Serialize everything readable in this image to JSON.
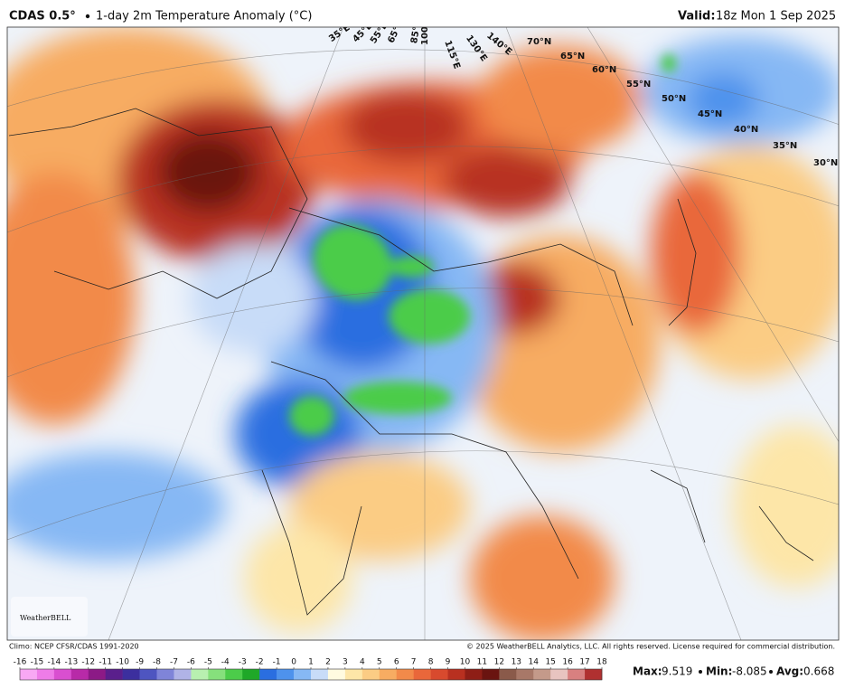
{
  "header": {
    "model": "CDAS 0.5°",
    "product": "1-day 2m Temperature Anomaly (°C)",
    "valid_label": "Valid:",
    "valid_time": "18z Mon 1 Sep 2025"
  },
  "map": {
    "lon_labels": [
      "35°E",
      "45°E",
      "55°E",
      "65°E",
      "85°E",
      "100°E",
      "115°E",
      "130°E",
      "140°E"
    ],
    "lat_labels": [
      "70°N",
      "65°N",
      "60°N",
      "55°N",
      "50°N",
      "45°N",
      "40°N",
      "35°N",
      "30°N"
    ],
    "logo": "WeatherBELL"
  },
  "footer": {
    "climo": "Climo: NCEP CFSR/CDAS 1991-2020",
    "copyright": "© 2025 WeatherBELL Analytics, LLC. All rights reserved. License required for commercial distribution."
  },
  "colorbar": {
    "ticks": [
      -16,
      -15,
      -14,
      -13,
      -12,
      -11,
      -10,
      -9,
      -8,
      -7,
      -6,
      -5,
      -4,
      -3,
      -2,
      -1,
      0,
      1,
      2,
      3,
      4,
      5,
      6,
      7,
      8,
      9,
      10,
      11,
      12,
      13,
      14,
      15,
      16,
      17,
      18
    ],
    "colors": [
      "#f8a8f4",
      "#ee7ce8",
      "#d94fd0",
      "#b82aa8",
      "#8c1a86",
      "#5a1f8c",
      "#3c2f9e",
      "#4e55c0",
      "#7f84d8",
      "#b0b3e6",
      "#b8f0b0",
      "#86e07c",
      "#4ccc4a",
      "#1fa828",
      "#2a6ee0",
      "#4e92ec",
      "#86b8f4",
      "#c8dcf8",
      "#fffbe0",
      "#fde6a8",
      "#fbcc84",
      "#f7ac62",
      "#f28a4a",
      "#e9673a",
      "#d84a2e",
      "#b83020",
      "#8e1e16",
      "#6a1410",
      "#8a5a4a",
      "#a87868",
      "#c49a8a",
      "#e8c4c0",
      "#d88080",
      "#b03030"
    ]
  },
  "stats": {
    "max_label": "Max:",
    "max": 9.519,
    "min_label": "Min:",
    "min": -8.085,
    "avg_label": "Avg:",
    "avg": 0.668
  }
}
